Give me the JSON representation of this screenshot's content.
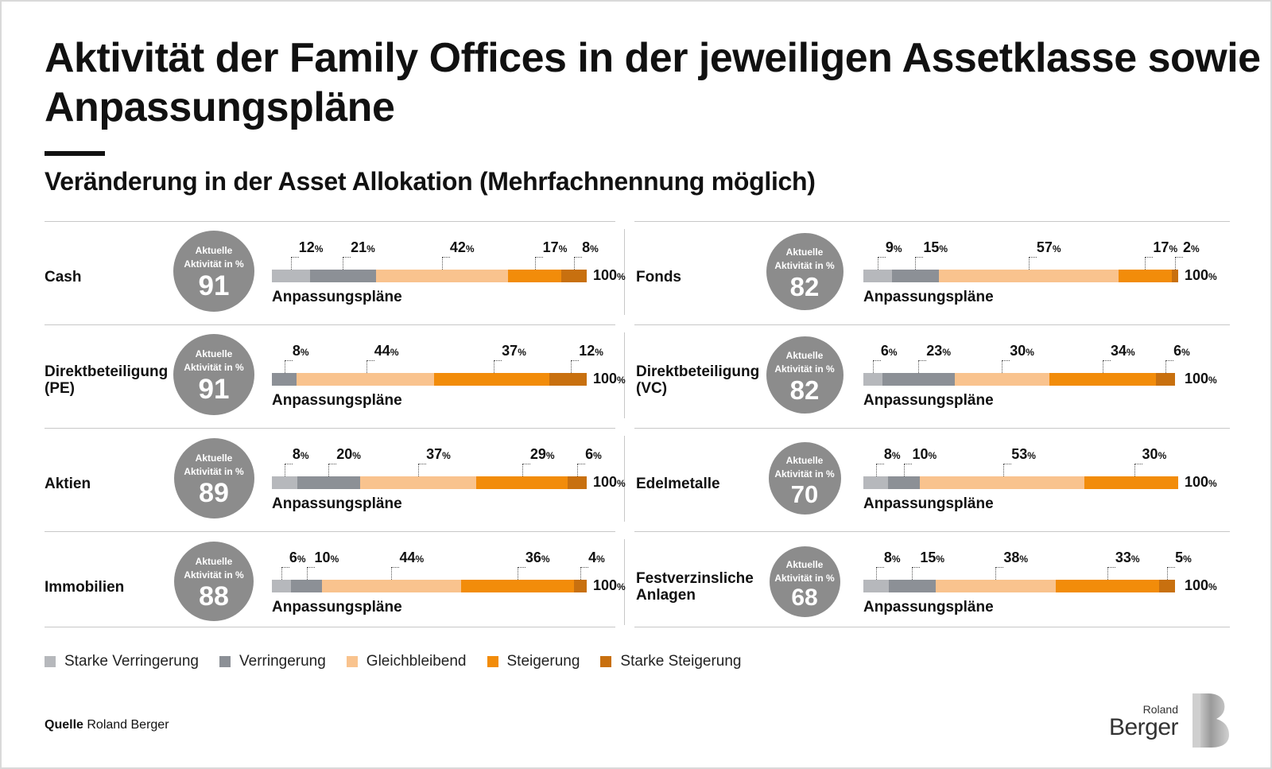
{
  "title": "Aktivität der Family Offices in der jeweiligen Assetklasse sowie Anpassungspläne",
  "subtitle": "Veränderung in der Asset Allokation (Mehrfachnennung möglich)",
  "circle_caption": "Aktuelle\nAktivität in %",
  "bar_caption": "Anpassungspläne",
  "total_label": "100",
  "percent_sign": "%",
  "colors": {
    "starke_verringerung": "#b6b8bc",
    "verringerung": "#8c9096",
    "gleichbleibend": "#f9c38e",
    "steigerung": "#f28c0a",
    "starke_steigerung": "#c8700f",
    "circle": "#8c8c8c"
  },
  "legend": [
    {
      "label": "Starke Verringerung",
      "color": "#b6b8bc"
    },
    {
      "label": "Verringerung",
      "color": "#8c9096"
    },
    {
      "label": "Gleichbleibend",
      "color": "#f9c38e"
    },
    {
      "label": "Steigerung",
      "color": "#f28c0a"
    },
    {
      "label": "Starke Steigerung",
      "color": "#c8700f"
    }
  ],
  "source": {
    "label": "Quelle",
    "text": "Roland Berger"
  },
  "logo": {
    "small": "Roland",
    "big": "Berger"
  },
  "chart_data": {
    "type": "bar",
    "stacked": true,
    "orientation": "horizontal",
    "series": [
      {
        "name": "Starke Verringerung",
        "color": "#b6b8bc"
      },
      {
        "name": "Verringerung",
        "color": "#8c9096"
      },
      {
        "name": "Gleichbleibend",
        "color": "#f9c38e"
      },
      {
        "name": "Steigerung",
        "color": "#f28c0a"
      },
      {
        "name": "Starke Steigerung",
        "color": "#c8700f"
      }
    ],
    "panels": [
      {
        "label": "Cash",
        "activity": 91,
        "values": [
          12,
          21,
          42,
          17,
          8
        ]
      },
      {
        "label": "Fonds",
        "activity": 82,
        "values": [
          9,
          15,
          57,
          17,
          2
        ]
      },
      {
        "label": "Direktbeteiligung\n(PE)",
        "activity": 91,
        "values": [
          0,
          8,
          44,
          37,
          12
        ]
      },
      {
        "label": "Direktbeteiligung\n(VC)",
        "activity": 82,
        "values": [
          6,
          23,
          30,
          34,
          6
        ]
      },
      {
        "label": "Aktien",
        "activity": 89,
        "values": [
          8,
          20,
          37,
          29,
          6
        ]
      },
      {
        "label": "Edelmetalle",
        "activity": 70,
        "values": [
          8,
          10,
          53,
          30,
          0
        ]
      },
      {
        "label": "Immobilien",
        "activity": 88,
        "values": [
          6,
          10,
          44,
          36,
          4
        ]
      },
      {
        "label": "Festverzinsliche\nAnlagen",
        "activity": 68,
        "values": [
          8,
          15,
          38,
          33,
          5
        ]
      }
    ],
    "xlim": [
      0,
      100
    ],
    "legend_position": "bottom"
  }
}
